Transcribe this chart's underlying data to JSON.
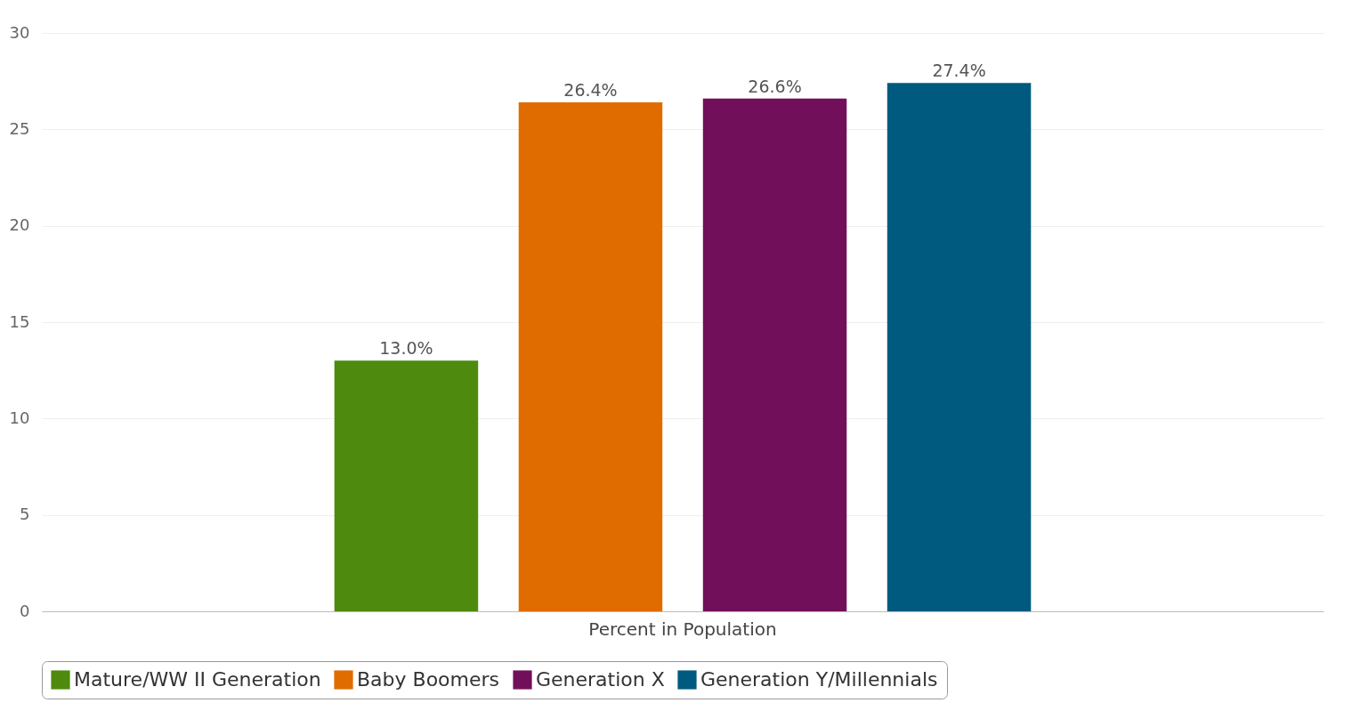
{
  "chart_data": {
    "type": "bar",
    "categories": [
      "Percent in Population"
    ],
    "series": [
      {
        "name": "Mature/WW II Generation",
        "color": "#4e8a0e",
        "values": [
          13.0
        ],
        "value_labels": [
          "13.0%"
        ]
      },
      {
        "name": "Baby Boomers",
        "color": "#e06c00",
        "values": [
          26.4
        ],
        "value_labels": [
          "26.4%"
        ]
      },
      {
        "name": "Generation X",
        "color": "#720f5a",
        "values": [
          26.6
        ],
        "value_labels": [
          "26.6%"
        ]
      },
      {
        "name": "Generation Y/Millennials",
        "color": "#005a80",
        "values": [
          27.4
        ],
        "value_labels": [
          "27.4%"
        ]
      }
    ],
    "ylim": [
      0,
      30
    ],
    "yticks": [
      0,
      5,
      10,
      15,
      20,
      25,
      30
    ],
    "grid": "y",
    "legend": "bottom"
  }
}
